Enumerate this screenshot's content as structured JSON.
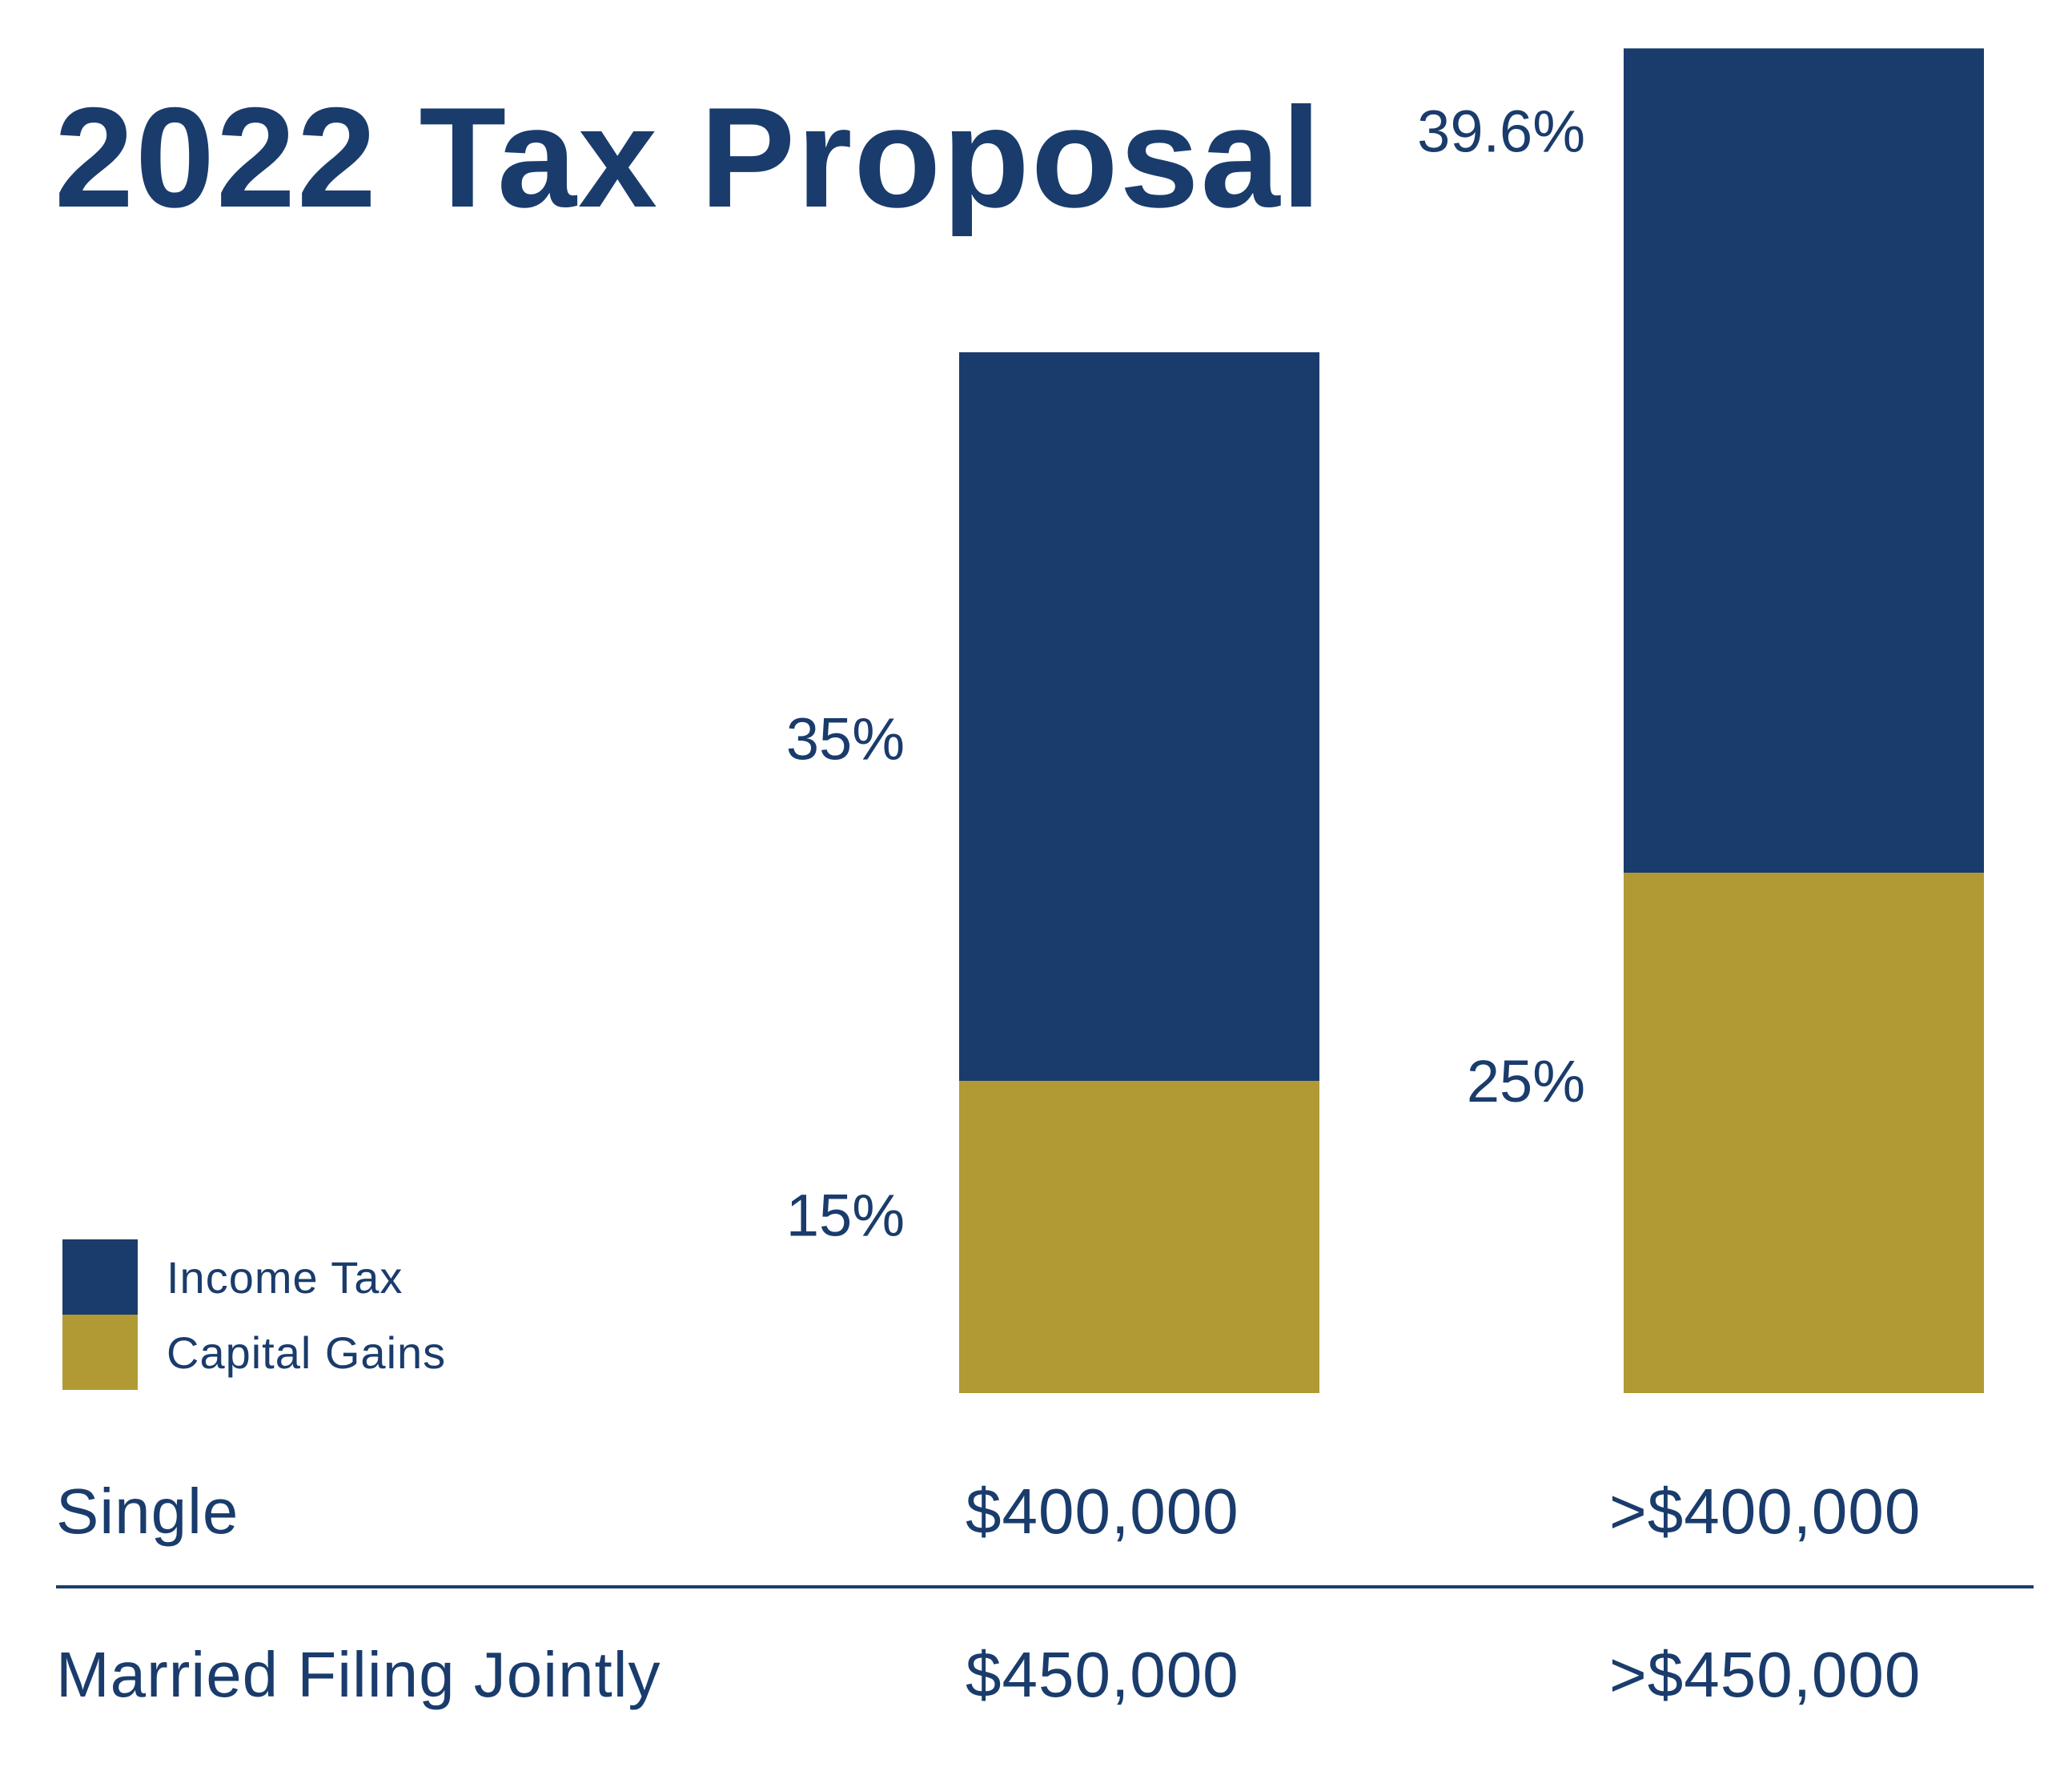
{
  "colors": {
    "income_tax": "#1a3c6c",
    "capital_gains": "#b19a33",
    "text": "#1a3c6c",
    "background": "#ffffff"
  },
  "chart_data": {
    "type": "bar",
    "stacked": true,
    "title": "2022 Tax Proposal",
    "categories": [
      "$400,000",
      ">$400,000"
    ],
    "series": [
      {
        "name": "Capital Gains",
        "values": [
          15,
          25
        ],
        "labels": [
          "15%",
          "25%"
        ]
      },
      {
        "name": "Income Tax",
        "values": [
          35,
          39.6
        ],
        "labels": [
          "35%",
          "39.6%"
        ]
      }
    ],
    "legend": [
      "Income Tax",
      "Capital Gains"
    ],
    "legend_position": "bottom-left",
    "xlabel": "",
    "ylabel": "",
    "ylim": [
      0,
      64.6
    ],
    "grid": false
  },
  "table": {
    "rows": [
      {
        "label": "Single",
        "threshold": "$400,000",
        "threshold_above": ">$400,000"
      },
      {
        "label": "Married Filing Jointly",
        "threshold": "$450,000",
        "threshold_above": ">$450,000"
      }
    ]
  }
}
